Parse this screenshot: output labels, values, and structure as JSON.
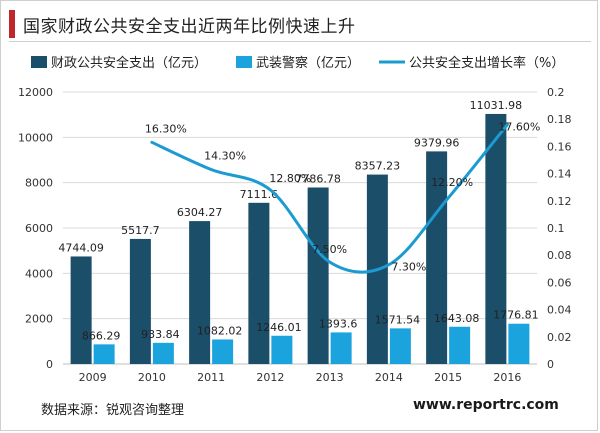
{
  "header": {
    "title": "国家财政公共安全支出近两年比例快速上升"
  },
  "footer": {
    "source": "数据来源：锐观咨询整理",
    "site": "www.reportrc.com"
  },
  "colors": {
    "bar_primary": "#1b4e69",
    "bar_secondary": "#1aa3dc",
    "line": "#1b9bd1",
    "accent": "#c0272d"
  },
  "chart_data": {
    "type": "bar",
    "categories": [
      "2009",
      "2010",
      "2011",
      "2012",
      "2013",
      "2014",
      "2015",
      "2016"
    ],
    "series": [
      {
        "name": "财政公共安全支出（亿元）",
        "type": "bar",
        "axis": "left",
        "values": [
          4744.09,
          5517.7,
          6304.27,
          7111.6,
          7786.78,
          8357.23,
          9379.96,
          11031.98
        ],
        "labels": [
          "4744.09",
          "5517.7",
          "6304.27",
          "7111.6",
          "7786.78",
          "8357.23",
          "9379.96",
          "11031.98"
        ]
      },
      {
        "name": "武装警察（亿元）",
        "type": "bar",
        "axis": "left",
        "values": [
          866.29,
          933.84,
          1082.02,
          1246.01,
          1393.6,
          1571.54,
          1643.08,
          1776.81
        ],
        "labels": [
          "866.29",
          "933.84",
          "1082.02",
          "1246.01",
          "1393.6",
          "1571.54",
          "1643.08",
          "1776.81"
        ]
      },
      {
        "name": "公共安全支出增长率（%）",
        "type": "line",
        "axis": "right",
        "values": [
          null,
          0.163,
          0.143,
          0.128,
          0.075,
          0.073,
          0.122,
          0.176
        ],
        "labels": [
          "",
          "16.30%",
          "14.30%",
          "12.80%",
          "7.50%",
          "7.30%",
          "12.20%",
          "17.60%"
        ]
      }
    ],
    "y_left": {
      "min": 0,
      "max": 12000,
      "ticks": [
        "0",
        "2000",
        "4000",
        "6000",
        "8000",
        "10000",
        "12000"
      ]
    },
    "y_right": {
      "min": 0,
      "max": 0.2,
      "ticks": [
        "0",
        "0.02",
        "0.04",
        "0.06",
        "0.08",
        "0.1",
        "0.12",
        "0.14",
        "0.16",
        "0.18",
        "0.2"
      ]
    },
    "grid": true,
    "legend": "top"
  }
}
